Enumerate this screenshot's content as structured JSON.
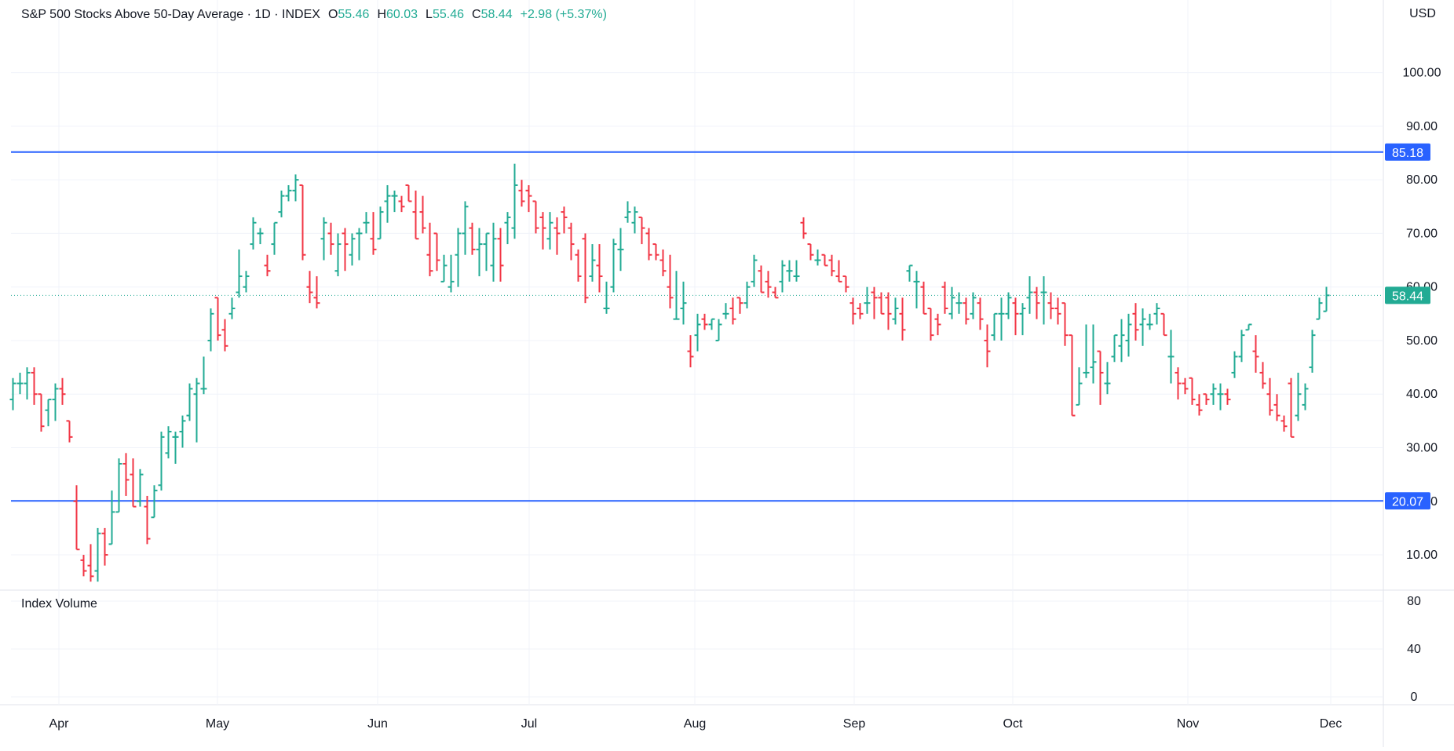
{
  "header": {
    "title": "S&P 500 Stocks Above 50-Day Average · 1D · INDEX",
    "open_label": "O",
    "open_value": "55.46",
    "high_label": "H",
    "high_value": "60.03",
    "low_label": "L",
    "low_value": "55.46",
    "close_label": "C",
    "close_value": "58.44",
    "change": "+2.98 (+5.37%)"
  },
  "currency": "USD",
  "volume_pane": {
    "label": "Index Volume",
    "ticks": [
      "80",
      "40",
      "0"
    ]
  },
  "colors": {
    "up": "#22ab94",
    "down": "#f23645",
    "hline": "#2962ff",
    "last_price": "#22ab94",
    "grid": "#f0f3fa"
  },
  "chart_data": {
    "type": "ohlc",
    "title": "S&P 500 Stocks Above 50-Day Average · 1D · INDEX",
    "xlabel": "",
    "ylabel": "",
    "ylim": [
      4,
      108
    ],
    "y_ticks": [
      "100.00",
      "90.00",
      "80.00",
      "70.00",
      "60.00",
      "50.00",
      "40.00",
      "30.00",
      "20.00",
      "10.00"
    ],
    "x_ticks": [
      "Apr",
      "May",
      "Jun",
      "Jul",
      "Aug",
      "Sep",
      "Oct",
      "Nov",
      "Dec"
    ],
    "grid": true,
    "horizontal_lines": [
      {
        "value": 85.18,
        "label": "85.18"
      },
      {
        "value": 20.07,
        "label": "20.07"
      }
    ],
    "last_value": {
      "value": 58.44,
      "label": "58.44"
    },
    "series": [
      [
        39,
        43,
        37,
        42
      ],
      [
        42,
        44,
        40,
        42
      ],
      [
        42,
        45,
        39,
        44
      ],
      [
        44,
        45,
        38,
        40
      ],
      [
        40,
        40,
        33,
        34
      ],
      [
        37,
        39,
        34,
        39
      ],
      [
        39,
        42,
        35,
        41
      ],
      [
        41,
        43,
        38,
        40
      ],
      [
        35,
        35,
        31,
        32
      ],
      [
        20,
        23,
        11,
        11
      ],
      [
        9,
        10,
        6,
        7
      ],
      [
        8,
        12,
        5,
        6
      ],
      [
        7,
        15,
        5,
        14
      ],
      [
        14,
        15,
        8,
        10
      ],
      [
        12,
        22,
        12,
        18
      ],
      [
        18,
        28,
        18,
        27
      ],
      [
        27,
        29,
        21,
        24
      ],
      [
        25,
        28,
        19,
        19
      ],
      [
        20,
        26,
        19,
        25
      ],
      [
        19,
        21,
        12,
        13
      ],
      [
        17,
        23,
        17,
        22
      ],
      [
        23,
        33,
        22,
        32
      ],
      [
        29,
        34,
        28,
        33
      ],
      [
        32,
        33,
        27,
        32
      ],
      [
        33,
        36,
        30,
        35
      ],
      [
        36,
        42,
        35,
        41
      ],
      [
        40,
        43,
        31,
        42
      ],
      [
        41,
        47,
        40,
        41
      ],
      [
        50,
        56,
        48,
        55
      ],
      [
        58,
        58,
        50,
        51
      ],
      [
        52,
        54,
        48,
        49
      ],
      [
        55,
        58,
        54,
        56
      ],
      [
        59,
        67,
        58,
        62
      ],
      [
        60,
        63,
        59,
        62
      ],
      [
        68,
        73,
        67,
        72
      ],
      [
        70,
        71,
        68,
        70
      ],
      [
        64,
        66,
        62,
        63
      ],
      [
        68,
        72,
        66,
        72
      ],
      [
        74,
        78,
        73,
        77
      ],
      [
        77,
        79,
        76,
        78
      ],
      [
        78,
        81,
        76,
        80
      ],
      [
        79,
        79,
        65,
        66
      ],
      [
        60,
        63,
        57,
        59
      ],
      [
        58,
        62,
        56,
        57
      ],
      [
        69,
        73,
        65,
        72
      ],
      [
        70,
        72,
        66,
        68
      ],
      [
        63,
        70,
        62,
        68
      ],
      [
        70,
        71,
        63,
        68
      ],
      [
        66,
        70,
        64,
        69
      ],
      [
        70,
        71,
        65,
        70
      ],
      [
        72,
        74,
        70,
        72
      ],
      [
        69,
        74,
        66,
        67
      ],
      [
        69,
        75,
        69,
        74
      ],
      [
        76,
        79,
        72,
        77
      ],
      [
        77,
        78,
        74,
        77
      ],
      [
        76,
        77,
        74,
        75
      ],
      [
        79,
        79,
        76,
        76
      ],
      [
        74,
        78,
        69,
        69
      ],
      [
        74,
        77,
        70,
        71
      ],
      [
        66,
        72,
        62,
        63
      ],
      [
        70,
        70,
        63,
        65
      ],
      [
        61,
        66,
        61,
        64
      ],
      [
        60,
        66,
        59,
        61
      ],
      [
        66,
        71,
        60,
        70
      ],
      [
        70,
        76,
        66,
        75
      ],
      [
        71,
        72,
        66,
        67
      ],
      [
        67,
        71,
        62,
        68
      ],
      [
        68,
        70,
        63,
        70
      ],
      [
        64,
        72,
        61,
        69
      ],
      [
        69,
        71,
        61,
        64
      ],
      [
        72,
        74,
        68,
        73
      ],
      [
        71,
        83,
        69,
        79
      ],
      [
        78,
        80,
        75,
        76
      ],
      [
        78,
        79,
        74,
        77
      ],
      [
        76,
        76,
        70,
        71
      ],
      [
        73,
        74,
        67,
        71
      ],
      [
        69,
        74,
        67,
        72
      ],
      [
        71,
        73,
        66,
        70
      ],
      [
        74,
        75,
        70,
        73
      ],
      [
        71,
        72,
        65,
        68
      ],
      [
        66,
        67,
        61,
        62
      ],
      [
        69,
        70,
        57,
        58
      ],
      [
        62,
        68,
        61,
        65
      ],
      [
        64,
        68,
        59,
        62
      ],
      [
        56,
        61,
        55,
        56
      ],
      [
        60,
        69,
        59,
        68
      ],
      [
        67,
        71,
        63,
        67
      ],
      [
        73,
        76,
        72,
        74
      ],
      [
        72,
        75,
        70,
        74
      ],
      [
        73,
        73,
        68,
        71
      ],
      [
        70,
        71,
        65,
        66
      ],
      [
        68,
        68,
        65,
        66
      ],
      [
        65,
        67,
        62,
        63
      ],
      [
        60,
        66,
        56,
        58
      ],
      [
        54,
        63,
        54,
        54
      ],
      [
        56,
        61,
        53,
        57
      ],
      [
        48,
        51,
        45,
        47
      ],
      [
        51,
        55,
        48,
        53
      ],
      [
        54,
        55,
        52,
        53
      ],
      [
        53,
        54,
        52,
        54
      ],
      [
        50,
        54,
        50,
        53
      ],
      [
        55,
        57,
        54,
        55
      ],
      [
        56,
        58,
        53,
        54
      ],
      [
        58,
        58,
        55,
        57
      ],
      [
        57,
        61,
        56,
        60
      ],
      [
        61,
        66,
        60,
        65
      ],
      [
        63,
        64,
        59,
        59
      ],
      [
        61,
        63,
        58,
        60
      ],
      [
        59,
        60,
        58,
        58
      ],
      [
        61,
        65,
        59,
        64
      ],
      [
        63,
        65,
        61,
        63
      ],
      [
        62,
        65,
        61,
        62
      ],
      [
        72,
        73,
        69,
        70
      ],
      [
        68,
        68,
        65,
        66
      ],
      [
        65,
        67,
        64,
        65
      ],
      [
        66,
        66,
        64,
        64
      ],
      [
        65,
        66,
        62,
        63
      ],
      [
        62,
        65,
        61,
        61
      ],
      [
        62,
        62,
        59,
        60
      ],
      [
        57,
        58,
        53,
        55
      ],
      [
        56,
        57,
        54,
        55
      ],
      [
        57,
        60,
        55,
        57
      ],
      [
        59,
        60,
        54,
        58
      ],
      [
        58,
        59,
        55,
        55
      ],
      [
        58,
        59,
        52,
        55
      ],
      [
        54,
        58,
        53,
        56
      ],
      [
        55,
        58,
        50,
        52
      ],
      [
        63,
        64,
        61,
        64
      ],
      [
        61,
        63,
        56,
        61
      ],
      [
        60,
        61,
        55,
        55
      ],
      [
        56,
        56,
        50,
        51
      ],
      [
        54,
        55,
        51,
        53
      ],
      [
        60,
        61,
        55,
        56
      ],
      [
        55,
        60,
        54,
        58
      ],
      [
        57,
        59,
        55,
        57
      ],
      [
        57,
        58,
        53,
        54
      ],
      [
        55,
        59,
        54,
        58
      ],
      [
        57,
        58,
        52,
        54
      ],
      [
        50,
        53,
        45,
        48
      ],
      [
        51,
        55,
        50,
        55
      ],
      [
        55,
        58,
        50,
        55
      ],
      [
        55,
        59,
        54,
        58
      ],
      [
        57,
        58,
        51,
        55
      ],
      [
        55,
        57,
        51,
        56
      ],
      [
        58,
        62,
        55,
        59
      ],
      [
        59,
        60,
        54,
        57
      ],
      [
        59,
        62,
        53,
        59
      ],
      [
        57,
        59,
        54,
        56
      ],
      [
        56,
        58,
        53,
        55
      ],
      [
        57,
        57,
        49,
        51
      ],
      [
        51,
        51,
        36,
        36
      ],
      [
        38,
        45,
        38,
        42
      ],
      [
        44,
        53,
        43,
        44
      ],
      [
        45,
        53,
        42,
        46
      ],
      [
        48,
        48,
        38,
        44
      ],
      [
        42,
        46,
        40,
        42
      ],
      [
        47,
        51,
        46,
        51
      ],
      [
        49,
        54,
        46,
        51
      ],
      [
        50,
        55,
        47,
        53
      ],
      [
        55,
        57,
        50,
        52
      ],
      [
        53,
        56,
        49,
        54
      ],
      [
        53,
        55,
        52,
        53
      ],
      [
        55,
        57,
        53,
        56
      ],
      [
        55,
        55,
        51,
        51
      ],
      [
        47,
        52,
        42,
        47
      ],
      [
        44,
        45,
        39,
        42
      ],
      [
        42,
        43,
        40,
        41
      ],
      [
        43,
        43,
        38,
        39
      ],
      [
        38,
        40,
        36,
        37
      ],
      [
        40,
        40,
        38,
        39
      ],
      [
        40,
        42,
        38,
        41
      ],
      [
        40,
        42,
        37,
        40
      ],
      [
        40,
        41,
        38,
        39
      ],
      [
        44,
        48,
        43,
        47
      ],
      [
        47,
        52,
        46,
        51
      ],
      [
        52,
        53,
        52,
        53
      ],
      [
        48,
        51,
        44,
        47
      ],
      [
        44,
        46,
        41,
        42
      ],
      [
        40,
        43,
        36,
        37
      ],
      [
        38,
        40,
        35,
        36
      ],
      [
        35,
        36,
        33,
        34
      ],
      [
        42,
        43,
        32,
        32
      ],
      [
        36,
        44,
        35,
        40
      ],
      [
        38,
        42,
        37,
        41
      ],
      [
        45,
        52,
        44,
        51
      ],
      [
        54,
        58,
        54,
        57
      ],
      [
        55.46,
        60.03,
        55.46,
        58.44
      ]
    ]
  }
}
